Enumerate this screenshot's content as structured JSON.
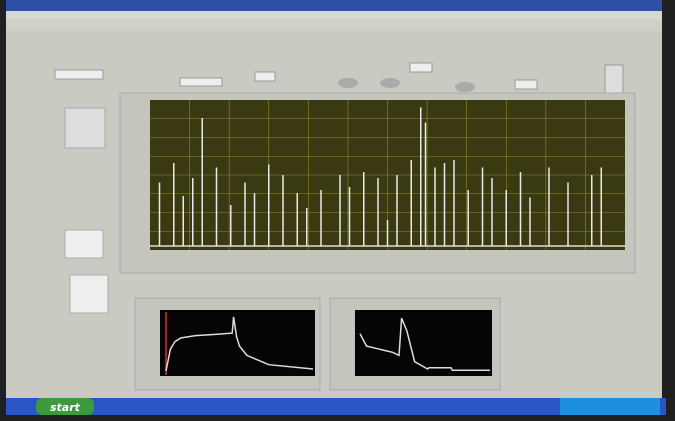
{
  "taskbar": {
    "start": "start"
  },
  "main_plot": {
    "type": "spike",
    "xlim": [
      0,
      100
    ],
    "ylim": [
      0,
      100
    ],
    "x": [
      2,
      5,
      7,
      9,
      11,
      14,
      17,
      20,
      22,
      25,
      28,
      31,
      33,
      36,
      40,
      42,
      45,
      48,
      50,
      52,
      55,
      57,
      58,
      60,
      62,
      64,
      67,
      70,
      72,
      75,
      78,
      80,
      84,
      88,
      93,
      95
    ],
    "values": [
      45,
      58,
      36,
      48,
      88,
      55,
      30,
      45,
      38,
      57,
      50,
      38,
      28,
      40,
      50,
      42,
      52,
      48,
      20,
      50,
      60,
      95,
      85,
      55,
      58,
      60,
      40,
      55,
      48,
      40,
      52,
      35,
      55,
      45,
      50,
      55
    ]
  },
  "left_plot": {
    "x": [
      0,
      3,
      6,
      10,
      20,
      35,
      45,
      46,
      48,
      50,
      55,
      70,
      100
    ],
    "values": [
      5,
      40,
      52,
      58,
      62,
      64,
      66,
      92,
      60,
      45,
      30,
      15,
      8
    ]
  },
  "right_plot": {
    "x": [
      0,
      5,
      15,
      25,
      30,
      32,
      36,
      42,
      52,
      53,
      70,
      71,
      100
    ],
    "values": [
      65,
      45,
      40,
      35,
      30,
      90,
      70,
      20,
      8,
      10,
      10,
      6,
      6
    ]
  }
}
